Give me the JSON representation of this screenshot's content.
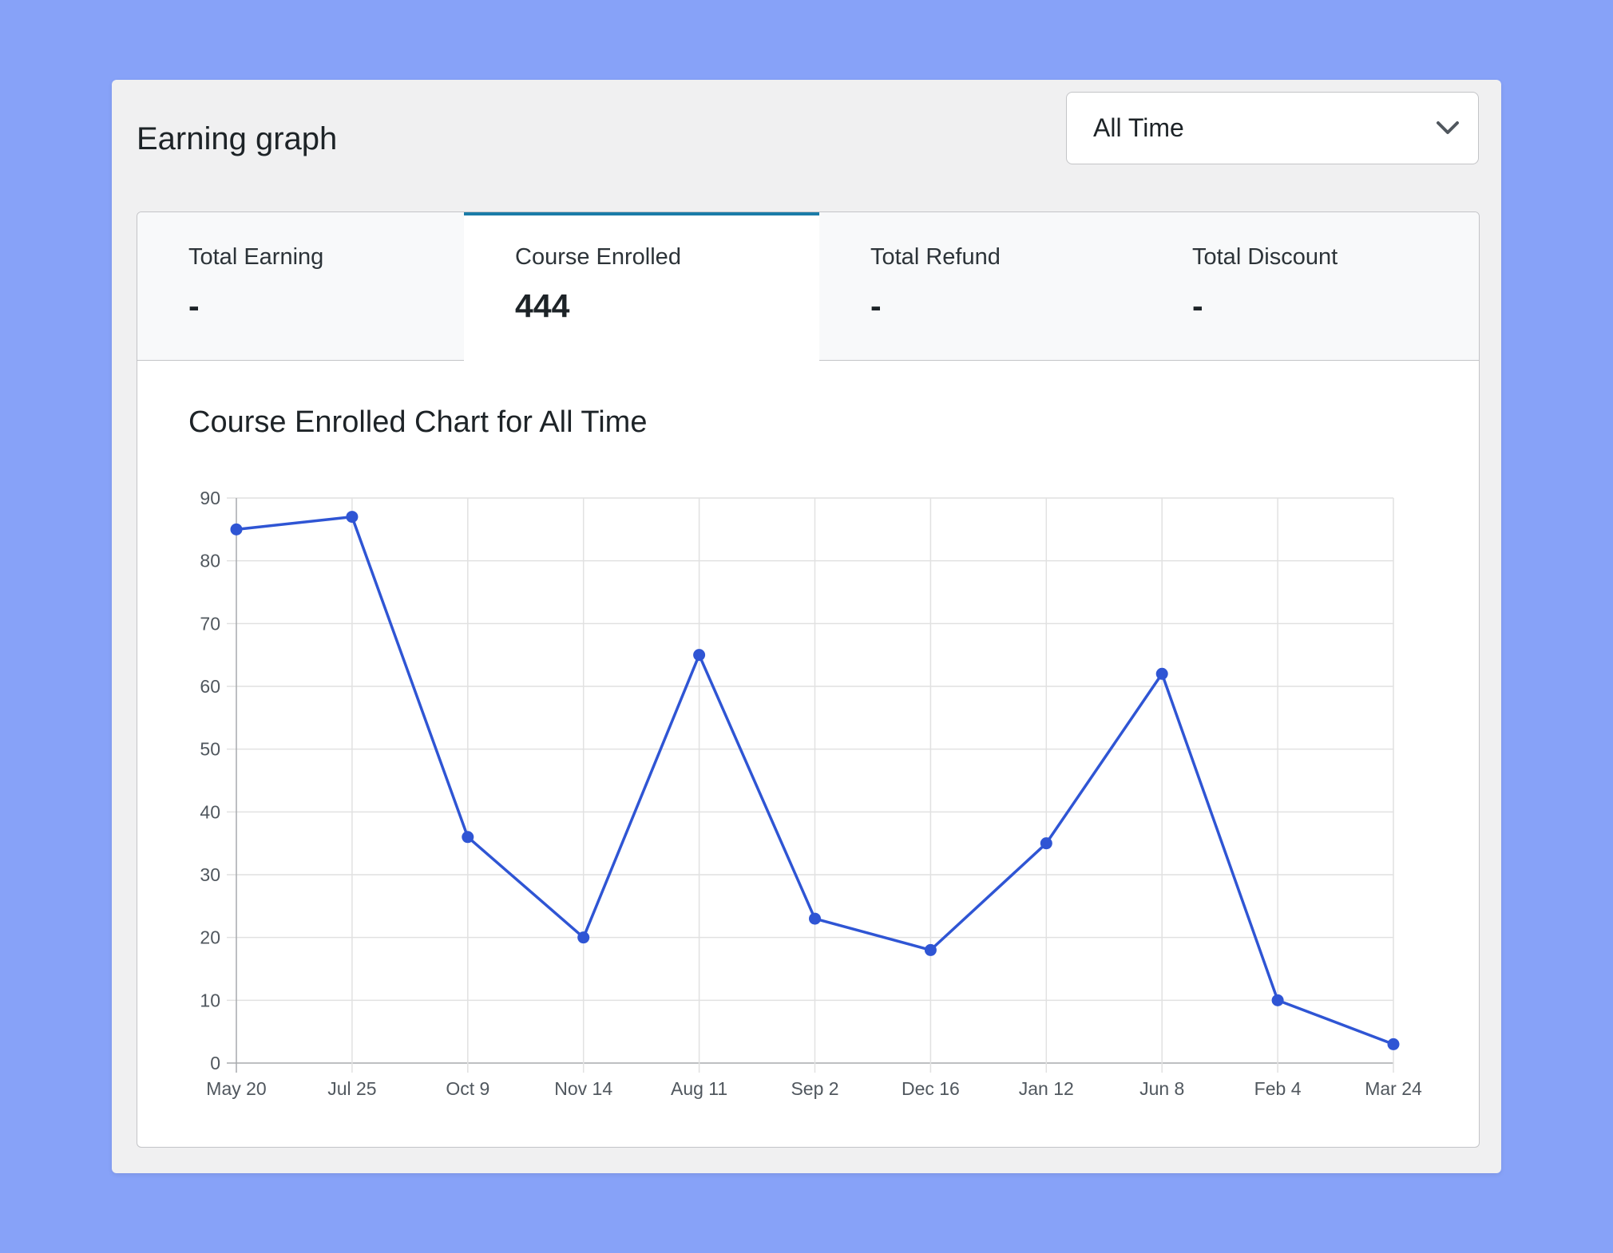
{
  "header": {
    "title": "Earning graph",
    "period_select": {
      "value": "All Time",
      "icon": "chevron-down-icon"
    }
  },
  "tabs": [
    {
      "label": "Total Earning",
      "value": "-",
      "active": false
    },
    {
      "label": "Course Enrolled",
      "value": "444",
      "active": true
    },
    {
      "label": "Total Refund",
      "value": "-",
      "active": false
    },
    {
      "label": "Total Discount",
      "value": "-",
      "active": false
    }
  ],
  "chart_title": "Course Enrolled Chart for All Time",
  "colors": {
    "background": "#87a2f8",
    "accent": "#1a7ca8",
    "series": "#2f55d4"
  },
  "chart_data": {
    "type": "line",
    "categories": [
      "May 20",
      "Jul 25",
      "Oct 9",
      "Nov 14",
      "Aug 11",
      "Sep 2",
      "Dec 16",
      "Jan 12",
      "Jun 8",
      "Feb 4",
      "Mar 24"
    ],
    "series": [
      {
        "values": [
          85,
          87,
          36,
          20,
          65,
          23,
          18,
          35,
          62,
          10,
          3
        ]
      }
    ],
    "title": "Course Enrolled Chart for All Time",
    "xlabel": "",
    "ylabel": "",
    "ylim": [
      0,
      90
    ],
    "yticks": [
      0,
      10,
      20,
      30,
      40,
      50,
      60,
      70,
      80,
      90
    ],
    "grid": true,
    "legend": "none"
  }
}
